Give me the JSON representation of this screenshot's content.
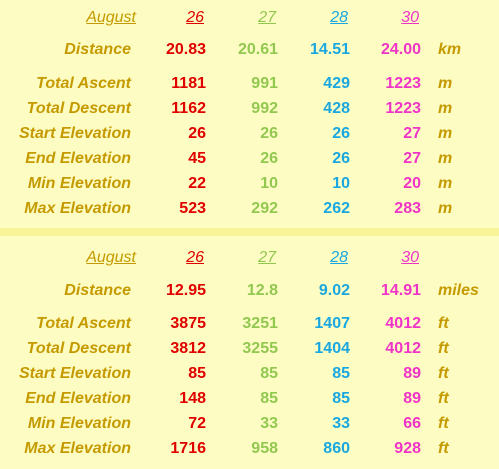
{
  "tables": [
    {
      "header": {
        "month": "August",
        "days": [
          "26",
          "27",
          "28",
          "30"
        ]
      },
      "rows": [
        {
          "label": "Distance",
          "values": [
            "20.83",
            "20.61",
            "14.51",
            "24.00"
          ],
          "unit": "km"
        },
        {
          "label": "Total Ascent",
          "values": [
            "1181",
            "991",
            "429",
            "1223"
          ],
          "unit": "m"
        },
        {
          "label": "Total Descent",
          "values": [
            "1162",
            "992",
            "428",
            "1223"
          ],
          "unit": "m"
        },
        {
          "label": "Start Elevation",
          "values": [
            "26",
            "26",
            "26",
            "27"
          ],
          "unit": "m"
        },
        {
          "label": "End Elevation",
          "values": [
            "45",
            "26",
            "26",
            "27"
          ],
          "unit": "m"
        },
        {
          "label": "Min Elevation",
          "values": [
            "22",
            "10",
            "10",
            "20"
          ],
          "unit": "m"
        },
        {
          "label": "Max Elevation",
          "values": [
            "523",
            "292",
            "262",
            "283"
          ],
          "unit": "m"
        }
      ]
    },
    {
      "header": {
        "month": "August",
        "days": [
          "26",
          "27",
          "28",
          "30"
        ]
      },
      "rows": [
        {
          "label": "Distance",
          "values": [
            "12.95",
            "12.8",
            "9.02",
            "14.91"
          ],
          "unit": "miles"
        },
        {
          "label": "Total Ascent",
          "values": [
            "3875",
            "3251",
            "1407",
            "4012"
          ],
          "unit": "ft"
        },
        {
          "label": "Total Descent",
          "values": [
            "3812",
            "3255",
            "1404",
            "4012"
          ],
          "unit": "ft"
        },
        {
          "label": "Start Elevation",
          "values": [
            "85",
            "85",
            "85",
            "89"
          ],
          "unit": "ft"
        },
        {
          "label": "End Elevation",
          "values": [
            "148",
            "85",
            "85",
            "89"
          ],
          "unit": "ft"
        },
        {
          "label": "Min Elevation",
          "values": [
            "72",
            "33",
            "33",
            "66"
          ],
          "unit": "ft"
        },
        {
          "label": "Max Elevation",
          "values": [
            "1716",
            "958",
            "860",
            "928"
          ],
          "unit": "ft"
        }
      ]
    }
  ]
}
